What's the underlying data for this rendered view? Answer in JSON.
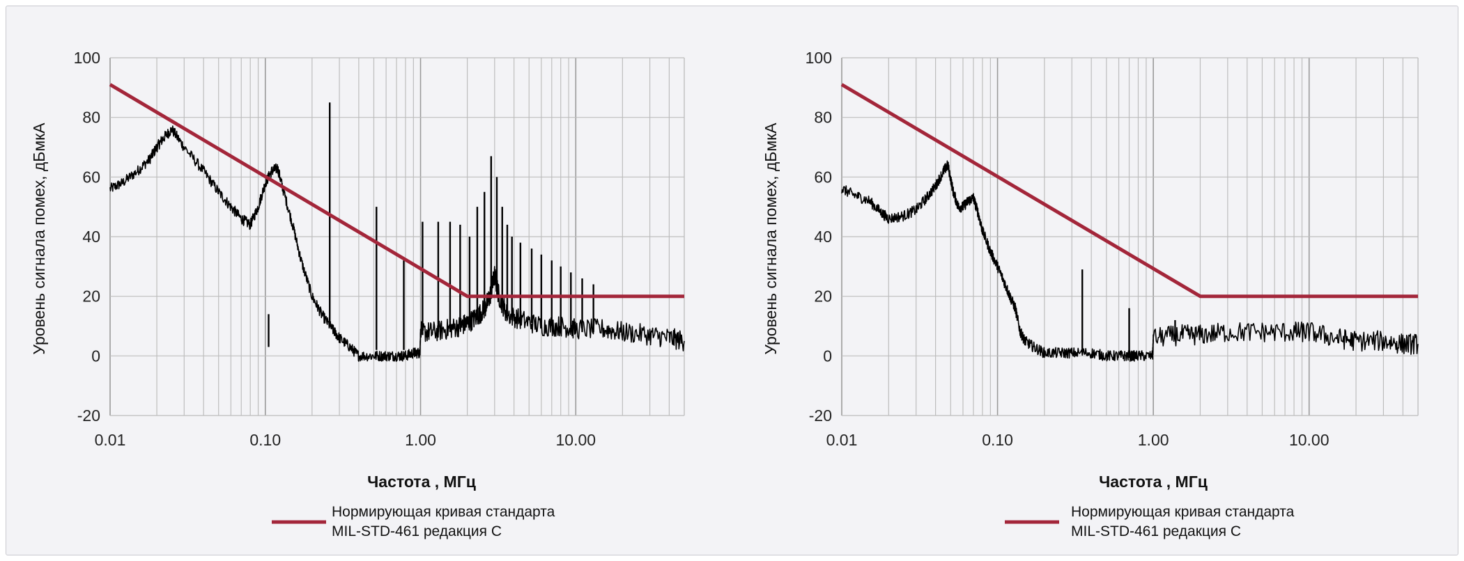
{
  "colors": {
    "standard": "#a3263a",
    "measured": "#000000",
    "grid": "#bdbdbd",
    "background": "#f3f3f6"
  },
  "legend": {
    "line1": "Нормирующая кривая стандарта",
    "line2": "MIL-STD-461 редакция C"
  },
  "chart_data": [
    {
      "type": "line",
      "title": "",
      "xlabel": "Частота , МГц",
      "ylabel": "Уровень сигнала помех, дБмкА",
      "xscale": "log",
      "xlim": [
        0.01,
        50
      ],
      "ylim": [
        -20,
        100
      ],
      "xticks": [
        "0.01",
        "0.10",
        "1.00",
        "10.00"
      ],
      "yticks": [
        "100",
        "80",
        "60",
        "40",
        "20",
        "0",
        "-20"
      ],
      "grid": true,
      "legend_position": "bottom",
      "series": [
        {
          "name": "Нормирующая кривая стандарта MIL-STD-461 редакция C",
          "color": "#a3263a",
          "x": [
            0.01,
            2.0,
            50
          ],
          "y": [
            91,
            20,
            20
          ]
        },
        {
          "color": "#000000",
          "x": [
            0.01,
            0.012,
            0.015,
            0.018,
            0.02,
            0.022,
            0.025,
            0.03,
            0.04,
            0.05,
            0.06,
            0.07,
            0.08,
            0.09,
            0.1,
            0.11,
            0.12,
            0.13,
            0.15,
            0.17,
            0.2,
            0.23,
            0.27,
            0.3,
            0.35,
            0.4,
            0.5,
            0.6,
            0.7,
            0.8,
            0.9,
            0.99,
            1.0,
            1.2,
            1.5,
            1.8,
            2.0,
            2.3,
            2.6,
            2.8,
            3.0,
            3.2,
            3.6,
            4.5,
            6,
            8,
            10,
            15,
            20,
            30,
            40,
            50
          ],
          "y": [
            56,
            58,
            62,
            66,
            70,
            73,
            76,
            70,
            62,
            55,
            50,
            46,
            44,
            50,
            58,
            62,
            63,
            56,
            44,
            32,
            20,
            14,
            9,
            6,
            3,
            0,
            0,
            0,
            0,
            0,
            1,
            1,
            8,
            8,
            9,
            10,
            11,
            13,
            16,
            20,
            27,
            20,
            14,
            12,
            10,
            10,
            9,
            9,
            8,
            7,
            6,
            5
          ],
          "spikes": [
            {
              "x": 0.105,
              "low": 3,
              "high": 14
            },
            {
              "x": 0.26,
              "low": 10,
              "high": 85
            },
            {
              "x": 0.52,
              "low": 2,
              "high": 50
            },
            {
              "x": 0.78,
              "low": 2,
              "high": 32
            },
            {
              "x": 1.03,
              "low": 7,
              "high": 45
            },
            {
              "x": 1.3,
              "low": 8,
              "high": 45
            },
            {
              "x": 1.55,
              "low": 8,
              "high": 45
            },
            {
              "x": 1.8,
              "low": 9,
              "high": 44
            },
            {
              "x": 2.07,
              "low": 10,
              "high": 40
            },
            {
              "x": 2.32,
              "low": 12,
              "high": 50
            },
            {
              "x": 2.58,
              "low": 15,
              "high": 55
            },
            {
              "x": 2.85,
              "low": 20,
              "high": 67
            },
            {
              "x": 3.1,
              "low": 22,
              "high": 60
            },
            {
              "x": 3.36,
              "low": 18,
              "high": 50
            },
            {
              "x": 3.62,
              "low": 14,
              "high": 44
            },
            {
              "x": 3.88,
              "low": 12,
              "high": 40
            },
            {
              "x": 4.4,
              "low": 12,
              "high": 38
            },
            {
              "x": 5.2,
              "low": 11,
              "high": 36
            },
            {
              "x": 6.0,
              "low": 10,
              "high": 34
            },
            {
              "x": 7.0,
              "low": 10,
              "high": 32
            },
            {
              "x": 8.0,
              "low": 9,
              "high": 30
            },
            {
              "x": 9.3,
              "low": 9,
              "high": 28
            },
            {
              "x": 11,
              "low": 8,
              "high": 26
            },
            {
              "x": 13,
              "low": 8,
              "high": 24
            }
          ]
        }
      ]
    },
    {
      "type": "line",
      "title": "",
      "xlabel": "Частота , МГц",
      "ylabel": "Уровень сигнала помех, дБмкА",
      "xscale": "log",
      "xlim": [
        0.01,
        50
      ],
      "ylim": [
        -20,
        100
      ],
      "xticks": [
        "0.01",
        "0.10",
        "1.00",
        "10.00"
      ],
      "yticks": [
        "100",
        "80",
        "60",
        "40",
        "20",
        "0",
        "-20"
      ],
      "grid": true,
      "legend_position": "bottom",
      "series": [
        {
          "name": "Нормирующая кривая стандарта MIL-STD-461 редакция C",
          "color": "#a3263a",
          "x": [
            0.01,
            2.0,
            50
          ],
          "y": [
            91,
            20,
            20
          ]
        },
        {
          "color": "#000000",
          "x": [
            0.01,
            0.012,
            0.015,
            0.018,
            0.02,
            0.025,
            0.03,
            0.035,
            0.04,
            0.045,
            0.048,
            0.052,
            0.056,
            0.06,
            0.065,
            0.07,
            0.075,
            0.08,
            0.09,
            0.1,
            0.11,
            0.12,
            0.13,
            0.14,
            0.15,
            0.17,
            0.2,
            0.25,
            0.3,
            0.4,
            0.5,
            0.6,
            0.7,
            0.8,
            0.99,
            1.0,
            1.5,
            2,
            3,
            5,
            8,
            10,
            15,
            20,
            30,
            40,
            50
          ],
          "y": [
            56,
            54,
            52,
            48,
            46,
            47,
            49,
            53,
            57,
            62,
            64,
            55,
            50,
            50,
            52,
            53,
            48,
            42,
            35,
            30,
            25,
            20,
            16,
            8,
            5,
            3,
            1,
            1,
            1,
            1,
            0,
            0,
            0,
            0,
            0,
            6,
            7,
            7,
            8,
            8,
            8,
            8,
            6,
            5,
            5,
            4,
            4
          ],
          "spikes": [
            {
              "x": 0.35,
              "low": 1,
              "high": 29
            },
            {
              "x": 0.7,
              "low": 1,
              "high": 16
            },
            {
              "x": 1.38,
              "low": 6,
              "high": 12
            }
          ]
        }
      ]
    }
  ]
}
